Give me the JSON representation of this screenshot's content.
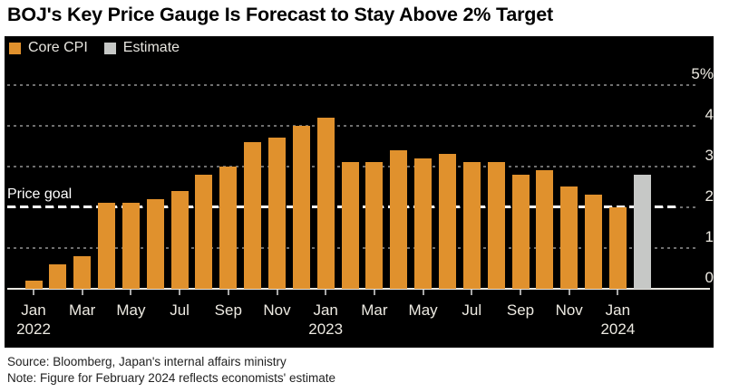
{
  "title": "BOJ's Key Price Gauge Is Forecast to Stay Above 2% Target",
  "legend": {
    "items": [
      {
        "label": "Core CPI"
      },
      {
        "label": "Estimate"
      }
    ]
  },
  "price_goal_label": "Price goal",
  "footer": {
    "source_line": "Source: Bloomberg, Japan's internal affairs ministry",
    "note_line": "Note: Figure for February 2024 reflects economists' estimate"
  },
  "chart_data": {
    "type": "bar",
    "title": "BOJ's Key Price Gauge Is Forecast to Stay Above 2% Target",
    "unit": "%",
    "ylim": [
      0,
      5
    ],
    "grid": "dotted-horizontal",
    "legend_position": "top-left",
    "axis_side": "right",
    "categories": [
      "Jan 2022",
      "Feb 2022",
      "Mar 2022",
      "Apr 2022",
      "May 2022",
      "Jun 2022",
      "Jul 2022",
      "Aug 2022",
      "Sep 2022",
      "Oct 2022",
      "Nov 2022",
      "Dec 2022",
      "Jan 2023",
      "Feb 2023",
      "Mar 2023",
      "Apr 2023",
      "May 2023",
      "Jun 2023",
      "Jul 2023",
      "Aug 2023",
      "Sep 2023",
      "Oct 2023",
      "Nov 2023",
      "Dec 2023",
      "Jan 2024",
      "Feb 2024"
    ],
    "values": [
      0.2,
      0.6,
      0.8,
      2.1,
      2.1,
      2.2,
      2.4,
      2.8,
      3.0,
      3.6,
      3.7,
      4.0,
      4.2,
      3.1,
      3.1,
      3.4,
      3.2,
      3.3,
      3.1,
      3.1,
      2.8,
      2.9,
      2.5,
      2.3,
      2.0,
      2.8
    ],
    "series_of_point": [
      "Core CPI",
      "Core CPI",
      "Core CPI",
      "Core CPI",
      "Core CPI",
      "Core CPI",
      "Core CPI",
      "Core CPI",
      "Core CPI",
      "Core CPI",
      "Core CPI",
      "Core CPI",
      "Core CPI",
      "Core CPI",
      "Core CPI",
      "Core CPI",
      "Core CPI",
      "Core CPI",
      "Core CPI",
      "Core CPI",
      "Core CPI",
      "Core CPI",
      "Core CPI",
      "Core CPI",
      "Core CPI",
      "Estimate"
    ],
    "estimate_index": 25,
    "yticks": [
      {
        "value": 0,
        "label": "0"
      },
      {
        "value": 1,
        "label": "1"
      },
      {
        "value": 2,
        "label": "2"
      },
      {
        "value": 3,
        "label": "3"
      },
      {
        "value": 4,
        "label": "4"
      },
      {
        "value": 5,
        "label": "5%"
      }
    ],
    "price_goal": {
      "value": 2,
      "label": "Price goal"
    },
    "x_ticks": [
      {
        "index": 0,
        "month": "Jan",
        "year": "2022"
      },
      {
        "index": 2,
        "month": "Mar"
      },
      {
        "index": 4,
        "month": "May"
      },
      {
        "index": 6,
        "month": "Jul"
      },
      {
        "index": 8,
        "month": "Sep"
      },
      {
        "index": 10,
        "month": "Nov"
      },
      {
        "index": 12,
        "month": "Jan",
        "year": "2023"
      },
      {
        "index": 14,
        "month": "Mar"
      },
      {
        "index": 16,
        "month": "May"
      },
      {
        "index": 18,
        "month": "Jul"
      },
      {
        "index": 20,
        "month": "Sep"
      },
      {
        "index": 22,
        "month": "Nov"
      },
      {
        "index": 24,
        "month": "Jan",
        "year": "2024"
      }
    ],
    "colors": {
      "core_cpi": "#E0912D",
      "estimate": "#C6C8C6",
      "price_goal_line": "#FFFFFF",
      "gridline": "#6F6F6F",
      "baseline": "#E9E7E1",
      "tick": "#A8A8A8",
      "axis_text": "#EDEAE2",
      "panel_bg": "#000000",
      "title_text": "#000000",
      "footer_text": "#222222"
    }
  }
}
